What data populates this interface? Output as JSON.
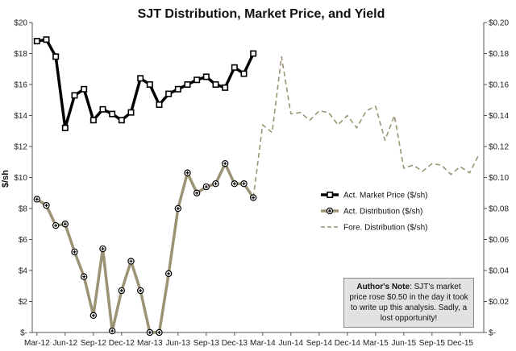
{
  "chart_data": {
    "type": "line",
    "title": "SJT Distribution, Market Price, and Yield",
    "ylabel_left": "$/sh",
    "ylabel_right": "",
    "y_left_ticks": [
      "$-",
      "$2",
      "$4",
      "$6",
      "$8",
      "$10",
      "$12",
      "$14",
      "$16",
      "$18",
      "$20"
    ],
    "y_right_ticks": [
      "$-",
      "$0.02",
      "$0.04",
      "$0.06",
      "$0.08",
      "$0.10",
      "$0.12",
      "$0.14",
      "$0.16",
      "$0.18",
      "$0.20"
    ],
    "ylim_left": [
      0,
      20
    ],
    "ylim_right": [
      0,
      0.2
    ],
    "x_tick_labels": [
      "Mar-12",
      "Jun-12",
      "Sep-12",
      "Dec-12",
      "Mar-13",
      "Jun-13",
      "Sep-13",
      "Dec-13",
      "Mar-14",
      "Jun-14",
      "Sep-14",
      "Dec-14",
      "Mar-15",
      "Jun-15",
      "Sep-15",
      "Dec-15"
    ],
    "x_months": [
      "2012-03",
      "2012-04",
      "2012-05",
      "2012-06",
      "2012-07",
      "2012-08",
      "2012-09",
      "2012-10",
      "2012-11",
      "2012-12",
      "2013-01",
      "2013-02",
      "2013-03",
      "2013-04",
      "2013-05",
      "2013-06",
      "2013-07",
      "2013-08",
      "2013-09",
      "2013-10",
      "2013-11",
      "2013-12",
      "2014-01",
      "2014-02",
      "2014-03",
      "2014-04",
      "2014-05",
      "2014-06",
      "2014-07",
      "2014-08",
      "2014-09",
      "2014-10",
      "2014-11",
      "2014-12",
      "2015-01",
      "2015-02",
      "2015-03",
      "2015-04",
      "2015-05",
      "2015-06",
      "2015-07",
      "2015-08",
      "2015-09",
      "2015-10",
      "2015-11",
      "2015-12",
      "2016-01",
      "2016-02"
    ],
    "grid": false,
    "legend_position": "center-right",
    "series": [
      {
        "name": "Act. Market Price ($/sh)",
        "axis": "left",
        "color": "#000000",
        "style": "solid-markers",
        "x": [
          "2012-03",
          "2012-04",
          "2012-05",
          "2012-06",
          "2012-07",
          "2012-08",
          "2012-09",
          "2012-10",
          "2012-11",
          "2012-12",
          "2013-01",
          "2013-02",
          "2013-03",
          "2013-04",
          "2013-05",
          "2013-06",
          "2013-07",
          "2013-08",
          "2013-09",
          "2013-10",
          "2013-11",
          "2013-12",
          "2014-01",
          "2014-02",
          "2014-03"
        ],
        "values": [
          18.8,
          18.9,
          17.8,
          13.2,
          15.3,
          15.7,
          13.7,
          14.4,
          14.1,
          13.7,
          14.2,
          16.4,
          16.0,
          14.7,
          15.4,
          15.7,
          16.0,
          16.3,
          16.5,
          16.0,
          15.8,
          17.1,
          16.7,
          18.0,
          null
        ]
      },
      {
        "name": "Act. Distribution ($/sh)",
        "axis": "right",
        "color": "#9c9375",
        "style": "solid-markers",
        "x": [
          "2012-03",
          "2012-04",
          "2012-05",
          "2012-06",
          "2012-07",
          "2012-08",
          "2012-09",
          "2012-10",
          "2012-11",
          "2012-12",
          "2013-01",
          "2013-02",
          "2013-03",
          "2013-04",
          "2013-05",
          "2013-06",
          "2013-07",
          "2013-08",
          "2013-09",
          "2013-10",
          "2013-11",
          "2013-12",
          "2014-01",
          "2014-02"
        ],
        "values": [
          0.086,
          0.082,
          0.069,
          0.07,
          0.052,
          0.036,
          0.011,
          0.054,
          0.001,
          0.027,
          0.046,
          0.027,
          0.0,
          0.0,
          0.038,
          0.08,
          0.103,
          0.09,
          0.094,
          0.096,
          0.109,
          0.096,
          0.096,
          0.087
        ]
      },
      {
        "name": "Fore. Distribution ($/sh)",
        "axis": "right",
        "color": "#9c9375",
        "style": "dashed",
        "x": [
          "2014-02",
          "2014-03",
          "2014-04",
          "2014-05",
          "2014-06",
          "2014-07",
          "2014-08",
          "2014-09",
          "2014-10",
          "2014-11",
          "2014-12",
          "2015-01",
          "2015-02",
          "2015-03",
          "2015-04",
          "2015-05",
          "2015-06",
          "2015-07",
          "2015-08",
          "2015-09",
          "2015-10",
          "2015-11",
          "2015-12",
          "2016-01",
          "2016-02"
        ],
        "values": [
          0.087,
          0.134,
          0.129,
          0.178,
          0.141,
          0.142,
          0.137,
          0.143,
          0.142,
          0.134,
          0.14,
          0.132,
          0.143,
          0.146,
          0.124,
          0.14,
          0.106,
          0.108,
          0.104,
          0.109,
          0.108,
          0.102,
          0.107,
          0.103,
          0.115
        ]
      }
    ]
  },
  "note": {
    "heading": "Author's Note",
    "text": ": SJT's market price rose $0.50 in the day it took to write up this analysis. Sadly, a lost opportunity!"
  }
}
